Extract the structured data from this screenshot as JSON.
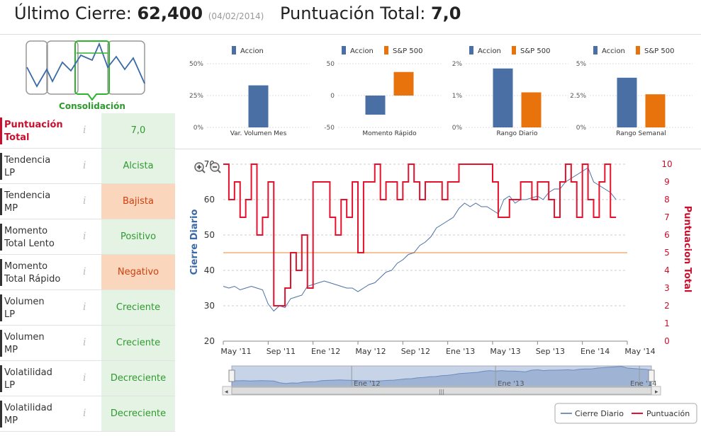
{
  "header": {
    "last_close_label": "Último Cierre:",
    "last_close_value": "62,400",
    "last_close_date": "(04/02/2014)",
    "score_label": "Puntuación Total:",
    "score_value": "7,0"
  },
  "thumbnail": {
    "label": "Consolidación",
    "icon": "consolidation-pattern-icon"
  },
  "score_rows": [
    {
      "label1": "Puntuación",
      "label2": "Total",
      "value": "7,0",
      "state": "good",
      "highlight": true
    },
    {
      "label1": "Tendencia",
      "label2": "LP",
      "value": "Alcista",
      "state": "good"
    },
    {
      "label1": "Tendencia",
      "label2": "MP",
      "value": "Bajista",
      "state": "bad"
    },
    {
      "label1": "Momento",
      "label2": "Total Lento",
      "value": "Positivo",
      "state": "good"
    },
    {
      "label1": "Momento",
      "label2": "Total Rápido",
      "value": "Negativo",
      "state": "bad"
    },
    {
      "label1": "Volumen",
      "label2": "LP",
      "value": "Creciente",
      "state": "good"
    },
    {
      "label1": "Volumen",
      "label2": "MP",
      "value": "Creciente",
      "state": "good"
    },
    {
      "label1": "Volatilidad",
      "label2": "LP",
      "value": "Decreciente",
      "state": "good"
    },
    {
      "label1": "Volatilidad",
      "label2": "MP",
      "value": "Decreciente",
      "state": "good"
    }
  ],
  "info_glyph": "i",
  "zoom": {
    "in_icon": "zoom-in-icon",
    "out_icon": "zoom-out-icon"
  },
  "navigator": {
    "labels": [
      "Ene '12",
      "Ene '13",
      "Ene '14"
    ],
    "grip": "|||"
  },
  "colors": {
    "accion": "#4a6fa5",
    "sp500": "#e8720c",
    "close": "#4a6fa5",
    "score": "#e8112d",
    "threshold": "#f0b070"
  },
  "chart_data": [
    {
      "type": "bar",
      "legend": [
        "Accion"
      ],
      "categories": [
        "Var. Volumen Mes"
      ],
      "series": [
        {
          "name": "Accion",
          "values": [
            33
          ]
        }
      ],
      "ylim": [
        0,
        50
      ],
      "ticks": [
        "0%",
        "25%",
        "50%"
      ],
      "tick_values": [
        0,
        25,
        50
      ]
    },
    {
      "type": "bar",
      "legend": [
        "Accion",
        "S&P 500"
      ],
      "categories": [
        "Momento Rápido"
      ],
      "series": [
        {
          "name": "Accion",
          "values": [
            -30
          ]
        },
        {
          "name": "S&P 500",
          "values": [
            37
          ]
        }
      ],
      "ylim": [
        -50,
        50
      ],
      "ticks": [
        "-50",
        "0",
        "50"
      ],
      "tick_values": [
        -50,
        0,
        50
      ]
    },
    {
      "type": "bar",
      "legend": [
        "Accion",
        "S&P 500"
      ],
      "categories": [
        "Rango Diario"
      ],
      "series": [
        {
          "name": "Accion",
          "values": [
            1.85
          ]
        },
        {
          "name": "S&P 500",
          "values": [
            1.1
          ]
        }
      ],
      "ylim": [
        0,
        2
      ],
      "ticks": [
        "0%",
        "1%",
        "2%"
      ],
      "tick_values": [
        0,
        1,
        2
      ]
    },
    {
      "type": "bar",
      "legend": [
        "Accion",
        "S&P 500"
      ],
      "categories": [
        "Rango Semanal"
      ],
      "series": [
        {
          "name": "Accion",
          "values": [
            3.9
          ]
        },
        {
          "name": "S&P 500",
          "values": [
            2.6
          ]
        }
      ],
      "ylim": [
        0,
        5
      ],
      "ticks": [
        "0%",
        "2.5%",
        "5%"
      ],
      "tick_values": [
        0,
        2.5,
        5
      ]
    },
    {
      "type": "line",
      "xlabel": "",
      "ylabel_left": "Cierre Diario",
      "ylabel_right": "Puntuacion Total",
      "ylim_left": [
        20,
        70
      ],
      "ylim_right": [
        0,
        10
      ],
      "yticks_left": [
        20,
        30,
        40,
        50,
        60,
        70
      ],
      "yticks_right": [
        0,
        1,
        2,
        3,
        4,
        5,
        6,
        7,
        8,
        9,
        10
      ],
      "xticks": [
        "May '11",
        "Sep '11",
        "Ene '12",
        "May '12",
        "Sep '12",
        "Ene '13",
        "May '13",
        "Sep '13",
        "Ene '14",
        "May '14"
      ],
      "xtick_values": [
        0,
        4,
        8,
        12,
        16,
        20,
        24,
        28,
        32,
        36
      ],
      "threshold": 5,
      "legend": [
        "Cierre Diario",
        "Puntuación"
      ],
      "series": [
        {
          "name": "Cierre Diario",
          "axis": "left",
          "x": [
            0,
            0.5,
            1,
            1.5,
            2,
            2.5,
            3,
            3.5,
            4,
            4.5,
            5,
            5.5,
            6,
            6.5,
            7,
            7.5,
            8,
            8.5,
            9,
            9.5,
            10,
            10.5,
            11,
            11.5,
            12,
            12.5,
            13,
            13.5,
            14,
            14.5,
            15,
            15.5,
            16,
            16.5,
            17,
            17.5,
            18,
            18.5,
            19,
            19.5,
            20,
            20.5,
            21,
            21.5,
            22,
            22.5,
            23,
            23.5,
            24,
            24.5,
            25,
            25.5,
            26,
            26.5,
            27,
            27.5,
            28,
            28.5,
            29,
            29.5,
            30,
            30.5,
            31,
            31.5,
            32,
            32.5,
            33,
            33.5,
            34,
            34.5,
            35
          ],
          "values": [
            35.5,
            35,
            35.5,
            34.5,
            35,
            35.5,
            35,
            34.5,
            30.5,
            28.5,
            30,
            29.5,
            32,
            32.5,
            33,
            35.5,
            36,
            36.5,
            37,
            36.5,
            36,
            35.5,
            35,
            35,
            34,
            35,
            36,
            36.5,
            38,
            39.5,
            40,
            42,
            43,
            44.5,
            45,
            47,
            48,
            49.5,
            52,
            53,
            54,
            55,
            57.5,
            59,
            58,
            59,
            58,
            58,
            57,
            56,
            60,
            61,
            59,
            60,
            60,
            60.5,
            61,
            60,
            62,
            63,
            63,
            65,
            66,
            67,
            68,
            69,
            65,
            64,
            63,
            62,
            60
          ]
        },
        {
          "name": "Puntuación",
          "axis": "right",
          "x": [
            0,
            0.5,
            1,
            1.5,
            2,
            2.5,
            3,
            3.5,
            4,
            4.5,
            5,
            5.5,
            6,
            6.5,
            7,
            7.5,
            8,
            8.5,
            9,
            9.5,
            10,
            10.5,
            11,
            11.5,
            12,
            12.5,
            13,
            13.5,
            14,
            14.5,
            15,
            15.5,
            16,
            16.5,
            17,
            17.5,
            18,
            18.5,
            19,
            19.5,
            20,
            20.5,
            21,
            21.5,
            22,
            22.5,
            23,
            23.5,
            24,
            24.5,
            25,
            25.5,
            26,
            26.5,
            27,
            27.5,
            28,
            28.5,
            29,
            29.5,
            30,
            30.5,
            31,
            31.5,
            32,
            32.5,
            33,
            33.5,
            34,
            34.5,
            35
          ],
          "values": [
            10,
            8,
            9,
            7,
            8,
            10,
            6,
            7,
            9,
            2,
            2,
            3,
            5,
            4,
            6,
            3,
            9,
            9,
            9,
            7,
            6,
            8,
            7,
            9,
            5,
            9,
            9,
            10,
            8,
            9,
            9,
            8,
            9,
            10,
            9,
            8,
            9,
            9,
            9,
            8,
            9,
            9,
            10,
            10,
            10,
            10,
            10,
            10,
            9,
            7,
            7,
            8,
            8,
            9,
            9,
            8,
            9,
            9,
            8,
            7,
            9,
            10,
            9,
            7,
            10,
            8,
            7,
            9,
            10,
            7,
            7
          ]
        }
      ]
    }
  ]
}
